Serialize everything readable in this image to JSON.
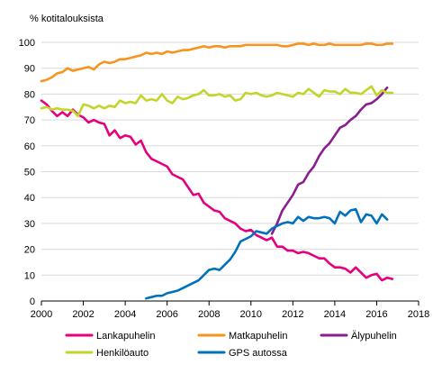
{
  "chart_data": {
    "type": "line",
    "title": "",
    "ylabel": "% kotitalouksista",
    "xlabel": "",
    "xlim": [
      2000,
      2018
    ],
    "ylim": [
      0,
      100
    ],
    "xticks": [
      2000,
      2002,
      2004,
      2006,
      2008,
      2010,
      2012,
      2014,
      2016,
      2018
    ],
    "yticks": [
      0,
      10,
      20,
      30,
      40,
      50,
      60,
      70,
      80,
      90,
      100
    ],
    "grid": "horizontal",
    "legend_position": "bottom",
    "series": [
      {
        "name": "Lankapuhelin",
        "color": "#e6007e",
        "points": [
          [
            2000.0,
            77.5
          ],
          [
            2000.25,
            76
          ],
          [
            2000.5,
            73.5
          ],
          [
            2000.75,
            71.5
          ],
          [
            2001.0,
            73
          ],
          [
            2001.25,
            71.5
          ],
          [
            2001.5,
            74
          ],
          [
            2001.75,
            72
          ],
          [
            2002.0,
            71
          ],
          [
            2002.25,
            69
          ],
          [
            2002.5,
            70
          ],
          [
            2002.75,
            69
          ],
          [
            2003.0,
            68.5
          ],
          [
            2003.25,
            64
          ],
          [
            2003.5,
            66
          ],
          [
            2003.75,
            63
          ],
          [
            2004.0,
            64
          ],
          [
            2004.25,
            63.5
          ],
          [
            2004.5,
            60.5
          ],
          [
            2004.75,
            62
          ],
          [
            2005.0,
            57.5
          ],
          [
            2005.25,
            55
          ],
          [
            2005.5,
            54
          ],
          [
            2005.75,
            53
          ],
          [
            2006.0,
            52
          ],
          [
            2006.25,
            49
          ],
          [
            2006.5,
            48
          ],
          [
            2006.75,
            47
          ],
          [
            2007.0,
            44
          ],
          [
            2007.25,
            41
          ],
          [
            2007.5,
            41.5
          ],
          [
            2007.75,
            38
          ],
          [
            2008.0,
            36.5
          ],
          [
            2008.25,
            35
          ],
          [
            2008.5,
            34.5
          ],
          [
            2008.75,
            32
          ],
          [
            2009.0,
            31
          ],
          [
            2009.25,
            30
          ],
          [
            2009.5,
            28
          ],
          [
            2009.75,
            27
          ],
          [
            2010.0,
            27.5
          ],
          [
            2010.25,
            25.5
          ],
          [
            2010.5,
            24.5
          ],
          [
            2010.75,
            23.5
          ],
          [
            2011.0,
            24.5
          ],
          [
            2011.25,
            21
          ],
          [
            2011.5,
            21
          ],
          [
            2011.75,
            19.5
          ],
          [
            2012.0,
            19.5
          ],
          [
            2012.25,
            18.5
          ],
          [
            2012.5,
            19
          ],
          [
            2012.75,
            18.5
          ],
          [
            2013.0,
            17.5
          ],
          [
            2013.25,
            16.5
          ],
          [
            2013.5,
            16.5
          ],
          [
            2013.75,
            14.5
          ],
          [
            2014.0,
            13
          ],
          [
            2014.25,
            13
          ],
          [
            2014.5,
            12.5
          ],
          [
            2014.75,
            11
          ],
          [
            2015.0,
            13
          ],
          [
            2015.25,
            11
          ],
          [
            2015.5,
            9
          ],
          [
            2015.75,
            10
          ],
          [
            2016.0,
            10.5
          ],
          [
            2016.25,
            8
          ],
          [
            2016.5,
            9
          ],
          [
            2016.75,
            8.5
          ]
        ]
      },
      {
        "name": "Matkapuhelin",
        "color": "#f7941d",
        "points": [
          [
            2000.0,
            85
          ],
          [
            2000.25,
            85.5
          ],
          [
            2000.5,
            86.5
          ],
          [
            2000.75,
            88
          ],
          [
            2001.0,
            88.5
          ],
          [
            2001.25,
            90
          ],
          [
            2001.5,
            89
          ],
          [
            2001.75,
            89.5
          ],
          [
            2002.0,
            90
          ],
          [
            2002.25,
            90.5
          ],
          [
            2002.5,
            89.5
          ],
          [
            2002.75,
            91.5
          ],
          [
            2003.0,
            92.5
          ],
          [
            2003.25,
            92
          ],
          [
            2003.5,
            92.5
          ],
          [
            2003.75,
            93.5
          ],
          [
            2004.0,
            93.5
          ],
          [
            2004.25,
            94
          ],
          [
            2004.5,
            94.5
          ],
          [
            2004.75,
            95
          ],
          [
            2005.0,
            96
          ],
          [
            2005.25,
            95.5
          ],
          [
            2005.5,
            96
          ],
          [
            2005.75,
            95.5
          ],
          [
            2006.0,
            96.5
          ],
          [
            2006.25,
            96
          ],
          [
            2006.5,
            96.5
          ],
          [
            2006.75,
            97
          ],
          [
            2007.0,
            97
          ],
          [
            2007.25,
            97.5
          ],
          [
            2007.5,
            98
          ],
          [
            2007.75,
            98.5
          ],
          [
            2008.0,
            98
          ],
          [
            2008.25,
            98.5
          ],
          [
            2008.5,
            98.5
          ],
          [
            2008.75,
            98
          ],
          [
            2009.0,
            98.5
          ],
          [
            2009.25,
            98.5
          ],
          [
            2009.5,
            98.5
          ],
          [
            2009.75,
            99
          ],
          [
            2010.0,
            99
          ],
          [
            2010.25,
            99
          ],
          [
            2010.5,
            99
          ],
          [
            2010.75,
            99
          ],
          [
            2011.0,
            99
          ],
          [
            2011.25,
            99
          ],
          [
            2011.5,
            98.5
          ],
          [
            2011.75,
            98.5
          ],
          [
            2012.0,
            99
          ],
          [
            2012.25,
            99.5
          ],
          [
            2012.5,
            99.5
          ],
          [
            2012.75,
            99
          ],
          [
            2013.0,
            99.5
          ],
          [
            2013.25,
            99
          ],
          [
            2013.5,
            99
          ],
          [
            2013.75,
            99.5
          ],
          [
            2014.0,
            99
          ],
          [
            2014.25,
            99
          ],
          [
            2014.5,
            99
          ],
          [
            2014.75,
            99
          ],
          [
            2015.0,
            99
          ],
          [
            2015.25,
            99
          ],
          [
            2015.5,
            99.5
          ],
          [
            2015.75,
            99.5
          ],
          [
            2016.0,
            99
          ],
          [
            2016.25,
            99
          ],
          [
            2016.5,
            99.5
          ],
          [
            2016.75,
            99.5
          ]
        ]
      },
      {
        "name": "Älypuhelin",
        "color": "#8b1e8e",
        "points": [
          [
            2011.0,
            26
          ],
          [
            2011.25,
            30
          ],
          [
            2011.5,
            35
          ],
          [
            2011.75,
            38
          ],
          [
            2012.0,
            41
          ],
          [
            2012.25,
            45
          ],
          [
            2012.5,
            46
          ],
          [
            2012.75,
            49.5
          ],
          [
            2013.0,
            52
          ],
          [
            2013.25,
            56
          ],
          [
            2013.5,
            59
          ],
          [
            2013.75,
            61
          ],
          [
            2014.0,
            64
          ],
          [
            2014.25,
            67
          ],
          [
            2014.5,
            68
          ],
          [
            2014.75,
            70
          ],
          [
            2015.0,
            71.5
          ],
          [
            2015.25,
            74
          ],
          [
            2015.5,
            76
          ],
          [
            2015.75,
            76.5
          ],
          [
            2016.0,
            78
          ],
          [
            2016.25,
            80
          ],
          [
            2016.5,
            82.5
          ]
        ]
      },
      {
        "name": "Henkilöauto",
        "color": "#c3d52b",
        "points": [
          [
            2000.0,
            74.5
          ],
          [
            2000.25,
            75
          ],
          [
            2000.5,
            74
          ],
          [
            2000.75,
            74.5
          ],
          [
            2001.0,
            74
          ],
          [
            2001.25,
            74
          ],
          [
            2001.5,
            73.5
          ],
          [
            2001.75,
            71.5
          ],
          [
            2002.0,
            76
          ],
          [
            2002.25,
            75.5
          ],
          [
            2002.5,
            74.5
          ],
          [
            2002.75,
            75.5
          ],
          [
            2003.0,
            74.5
          ],
          [
            2003.25,
            75.5
          ],
          [
            2003.5,
            75
          ],
          [
            2003.75,
            77.5
          ],
          [
            2004.0,
            76.5
          ],
          [
            2004.25,
            77
          ],
          [
            2004.5,
            76.5
          ],
          [
            2004.75,
            79.5
          ],
          [
            2005.0,
            77.5
          ],
          [
            2005.25,
            78
          ],
          [
            2005.5,
            77.5
          ],
          [
            2005.75,
            80
          ],
          [
            2006.0,
            77.5
          ],
          [
            2006.25,
            76.5
          ],
          [
            2006.5,
            79
          ],
          [
            2006.75,
            78
          ],
          [
            2007.0,
            78.5
          ],
          [
            2007.25,
            79.5
          ],
          [
            2007.5,
            80
          ],
          [
            2007.75,
            81.5
          ],
          [
            2008.0,
            79.5
          ],
          [
            2008.25,
            79.5
          ],
          [
            2008.5,
            80
          ],
          [
            2008.75,
            79
          ],
          [
            2009.0,
            79.5
          ],
          [
            2009.25,
            77.5
          ],
          [
            2009.5,
            78
          ],
          [
            2009.75,
            80.5
          ],
          [
            2010.0,
            80
          ],
          [
            2010.25,
            80.5
          ],
          [
            2010.5,
            79.5
          ],
          [
            2010.75,
            79
          ],
          [
            2011.0,
            79.5
          ],
          [
            2011.25,
            80.5
          ],
          [
            2011.5,
            80
          ],
          [
            2011.75,
            79.5
          ],
          [
            2012.0,
            79
          ],
          [
            2012.25,
            80.5
          ],
          [
            2012.5,
            80
          ],
          [
            2012.75,
            82
          ],
          [
            2013.0,
            80.5
          ],
          [
            2013.25,
            79
          ],
          [
            2013.5,
            81.5
          ],
          [
            2013.75,
            81
          ],
          [
            2014.0,
            81
          ],
          [
            2014.25,
            80
          ],
          [
            2014.5,
            82
          ],
          [
            2014.75,
            80.5
          ],
          [
            2015.0,
            80.5
          ],
          [
            2015.25,
            80
          ],
          [
            2015.5,
            81.5
          ],
          [
            2015.75,
            83
          ],
          [
            2016.0,
            79.5
          ],
          [
            2016.25,
            81.5
          ],
          [
            2016.5,
            80.5
          ],
          [
            2016.75,
            80.5
          ]
        ]
      },
      {
        "name": "GPS autossa",
        "color": "#0072bc",
        "points": [
          [
            2005.0,
            1
          ],
          [
            2005.25,
            1.5
          ],
          [
            2005.5,
            2
          ],
          [
            2005.75,
            2
          ],
          [
            2006.0,
            3
          ],
          [
            2006.25,
            3.5
          ],
          [
            2006.5,
            4
          ],
          [
            2006.75,
            5
          ],
          [
            2007.0,
            6
          ],
          [
            2007.25,
            7
          ],
          [
            2007.5,
            8
          ],
          [
            2007.75,
            10
          ],
          [
            2008.0,
            12
          ],
          [
            2008.25,
            12.5
          ],
          [
            2008.5,
            12
          ],
          [
            2008.75,
            14
          ],
          [
            2009.0,
            16
          ],
          [
            2009.25,
            19
          ],
          [
            2009.5,
            23
          ],
          [
            2009.75,
            24
          ],
          [
            2010.0,
            25
          ],
          [
            2010.25,
            27
          ],
          [
            2010.5,
            26.5
          ],
          [
            2010.75,
            26
          ],
          [
            2011.0,
            28
          ],
          [
            2011.25,
            29
          ],
          [
            2011.5,
            30
          ],
          [
            2011.75,
            30.5
          ],
          [
            2012.0,
            30
          ],
          [
            2012.25,
            32.5
          ],
          [
            2012.5,
            31
          ],
          [
            2012.75,
            32.5
          ],
          [
            2013.0,
            32
          ],
          [
            2013.25,
            32
          ],
          [
            2013.5,
            32.5
          ],
          [
            2013.75,
            32
          ],
          [
            2014.0,
            30
          ],
          [
            2014.25,
            34.5
          ],
          [
            2014.5,
            33
          ],
          [
            2014.75,
            35
          ],
          [
            2015.0,
            35.5
          ],
          [
            2015.25,
            30.5
          ],
          [
            2015.5,
            33.5
          ],
          [
            2015.75,
            33
          ],
          [
            2016.0,
            30
          ],
          [
            2016.25,
            33.5
          ],
          [
            2016.5,
            31.5
          ]
        ]
      }
    ]
  }
}
